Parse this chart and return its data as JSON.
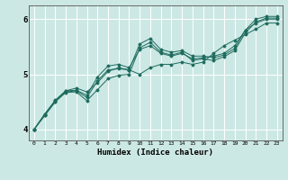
{
  "xlabel": "Humidex (Indice chaleur)",
  "ylabel": "",
  "bg_color": "#cce8e4",
  "line_color": "#1e6b5e",
  "grid_color": "#ffffff",
  "xlim": [
    -0.5,
    23.5
  ],
  "ylim": [
    3.8,
    6.25
  ],
  "yticks": [
    4,
    5,
    6
  ],
  "xticks": [
    0,
    1,
    2,
    3,
    4,
    5,
    6,
    7,
    8,
    9,
    10,
    11,
    12,
    13,
    14,
    15,
    16,
    17,
    18,
    19,
    20,
    21,
    22,
    23
  ],
  "series": [
    [
      4.0,
      4.28,
      4.52,
      4.7,
      4.75,
      4.68,
      4.85,
      5.05,
      5.12,
      5.08,
      5.55,
      5.65,
      5.45,
      5.4,
      5.43,
      5.33,
      5.33,
      5.3,
      5.35,
      5.47,
      5.8,
      6.0,
      6.05,
      6.05
    ],
    [
      4.0,
      4.25,
      4.5,
      4.68,
      4.7,
      4.58,
      4.88,
      5.08,
      5.1,
      5.08,
      5.0,
      5.12,
      5.18,
      5.18,
      5.22,
      5.18,
      5.22,
      5.38,
      5.52,
      5.62,
      5.72,
      5.82,
      5.93,
      5.93
    ],
    [
      4.0,
      4.27,
      4.53,
      4.7,
      4.71,
      4.62,
      4.95,
      5.15,
      5.18,
      5.12,
      5.45,
      5.52,
      5.38,
      5.33,
      5.38,
      5.28,
      5.3,
      5.33,
      5.38,
      5.52,
      5.8,
      5.93,
      6.0,
      6.0
    ],
    [
      4.0,
      4.25,
      4.5,
      4.67,
      4.68,
      4.52,
      4.72,
      4.92,
      4.98,
      5.0,
      5.48,
      5.58,
      5.4,
      5.35,
      5.4,
      5.25,
      5.28,
      5.25,
      5.32,
      5.43,
      5.75,
      5.95,
      6.02,
      6.02
    ]
  ]
}
